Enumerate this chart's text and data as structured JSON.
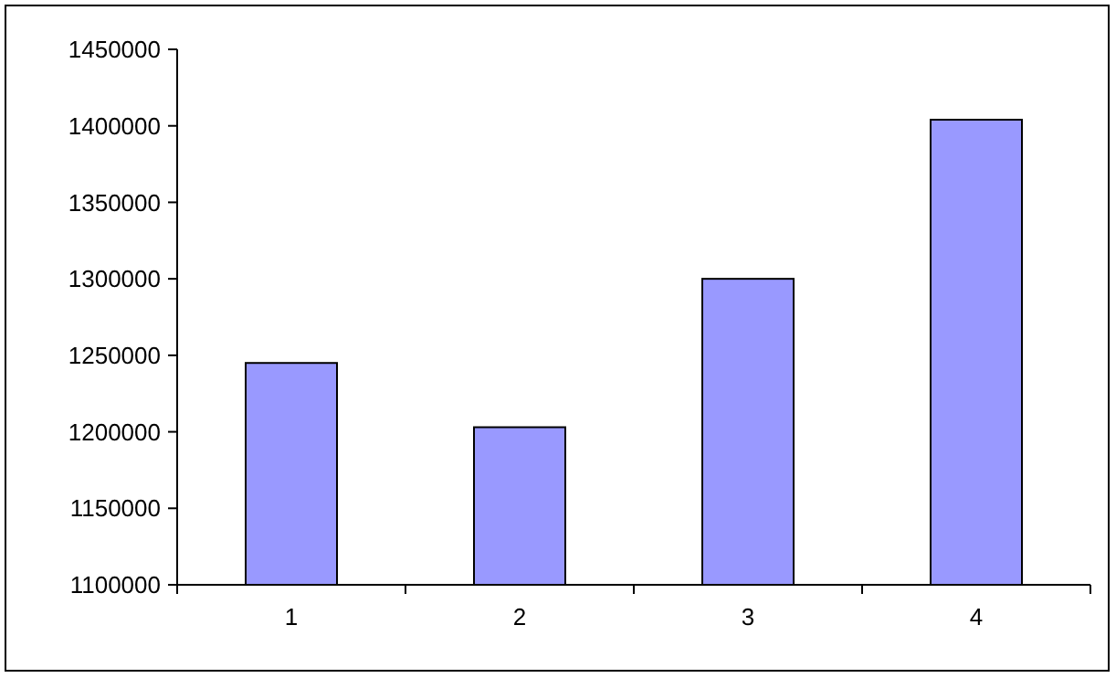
{
  "chart_data": {
    "type": "bar",
    "categories": [
      "1",
      "2",
      "3",
      "4"
    ],
    "values": [
      1245000,
      1203000,
      1300000,
      1404000
    ],
    "color": "#9999ff",
    "ylim": [
      1100000,
      1450000
    ],
    "yticks": [
      1100000,
      1150000,
      1200000,
      1250000,
      1300000,
      1350000,
      1400000,
      1450000
    ],
    "grid": false
  }
}
